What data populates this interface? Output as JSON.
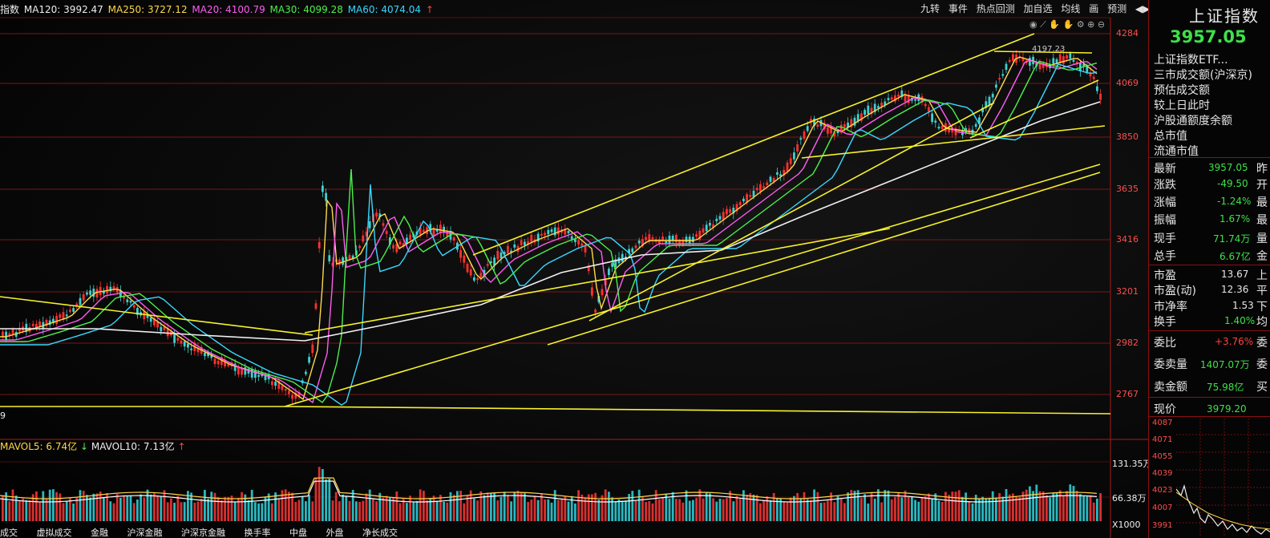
{
  "ma_legend": {
    "ma120": "MA120: 3992.47",
    "ma250": "MA250: 3727.12",
    "ma20": "MA20: 4100.79",
    "ma30": "MA30: 4099.28",
    "ma60": "MA60: 4074.04",
    "ma_prefix": "指数"
  },
  "colors": {
    "up": "#ff3030",
    "down": "#3fd0d0",
    "ma5": "#ffffff",
    "ma10": "#ffd84a",
    "ma20": "#ff5cf0",
    "ma30": "#4cf04c",
    "ma60": "#38d8ff",
    "ma120": "#f0f0f0",
    "trend": "#f6f22a",
    "grid": "#7a1616",
    "price_green": "#3ee04a",
    "price_red": "#ff4040"
  },
  "toolbar": [
    "九转",
    "事件",
    "热点回测",
    "加自选",
    "均线",
    "画",
    "预测"
  ],
  "price_axis": [
    "4284",
    "4069",
    "3850",
    "3635",
    "3416",
    "3201",
    "2982",
    "2767"
  ],
  "high_label": "4197.23",
  "side_panel": {
    "title": "上证指数",
    "price": "3957.05",
    "rows_top": [
      "上证指数ETF...",
      "三市成交额(沪深京)",
      "预估成交额",
      "较上日此时",
      "沪股通额度余额",
      "总市值",
      "流通市值"
    ],
    "stats": [
      {
        "label": "最新",
        "value": "3957.05",
        "tail": "昨"
      },
      {
        "label": "涨跌",
        "value": "-49.50",
        "tail": "开"
      },
      {
        "label": "涨幅",
        "value": "-1.24%",
        "tail": "最"
      },
      {
        "label": "振幅",
        "value": "1.67%",
        "tail": "最"
      },
      {
        "label": "现手",
        "value": "71.74万",
        "tail": "量"
      },
      {
        "label": "总手",
        "value": "6.67亿",
        "tail": "金"
      }
    ],
    "valuation": [
      {
        "label": "市盈",
        "value": "13.67",
        "tail": "上"
      },
      {
        "label": "市盈(动)",
        "value": "12.36",
        "tail": "平"
      },
      {
        "label": "市净率",
        "value": "1.53",
        "tail": "下"
      },
      {
        "label": "换手",
        "value": "1.40%",
        "tail": "均"
      }
    ],
    "order": [
      {
        "label": "委比",
        "value": "+3.76%",
        "tail": "委"
      },
      {
        "label": "委卖量",
        "value": "1407.07万",
        "tail": "委"
      },
      {
        "label": "卖金额",
        "value": "75.98亿",
        "tail": "买"
      }
    ],
    "now_price_label": "现价",
    "now_price_value": "3979.20",
    "mini_axis": [
      "4087",
      "4071",
      "4055",
      "4039",
      "4023",
      "4007",
      "3991"
    ]
  },
  "volume": {
    "label_mavol5": "MAVOL5: 6.74亿",
    "label_mavol10": "MAVOL10: 7.13亿",
    "axis_top": "131.35万",
    "axis_mid": "66.38万",
    "axis_unit": "X1000"
  },
  "bottom_tabs": [
    "成交",
    "虚拟成交",
    "金融",
    "沪深金融",
    "沪深京金融",
    "换手率",
    "中盘",
    "外盘",
    "净长成交"
  ],
  "left_edge_label": "9"
}
